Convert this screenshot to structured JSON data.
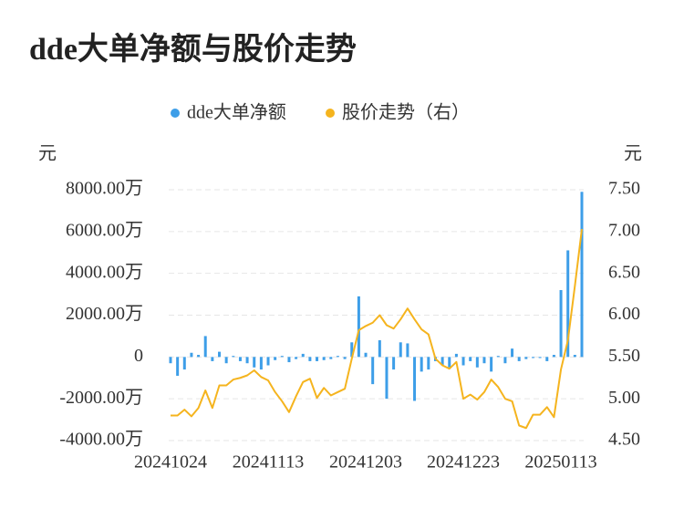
{
  "chart_data": {
    "type": "bar",
    "title": "dde大单净额与股价走势",
    "y_label": "元",
    "y2_label": "元",
    "legend": "top",
    "grid": true,
    "categories": [
      "20241024",
      null,
      null,
      null,
      null,
      null,
      null,
      null,
      null,
      null,
      null,
      null,
      null,
      null,
      "20241113",
      null,
      null,
      null,
      null,
      null,
      null,
      null,
      null,
      null,
      null,
      null,
      null,
      null,
      "20241203",
      null,
      null,
      null,
      null,
      null,
      null,
      null,
      null,
      null,
      null,
      null,
      null,
      null,
      "20241223",
      null,
      null,
      null,
      null,
      null,
      null,
      null,
      null,
      null,
      null,
      null,
      null,
      null,
      "20250113",
      null,
      null,
      null
    ],
    "series": [
      {
        "name": "dde大单净额",
        "color": "#3d9ee8",
        "type": "bar",
        "values": [
          -300,
          -900,
          -600,
          200,
          100,
          1000,
          -200,
          250,
          -300,
          50,
          -200,
          -300,
          -500,
          -600,
          -400,
          -150,
          50,
          -250,
          -100,
          150,
          -200,
          -200,
          -150,
          -100,
          50,
          -100,
          700,
          2900,
          200,
          -1300,
          800,
          -2000,
          -600,
          700,
          650,
          -2100,
          -700,
          -600,
          -200,
          -400,
          -500,
          150,
          -400,
          -200,
          -500,
          -300,
          -700,
          50,
          -300,
          400,
          -200,
          -100,
          -50,
          -50,
          -200,
          100,
          3200,
          5100,
          100,
          7900
        ]
      },
      {
        "name": "股价走势（右）",
        "color": "#f5b41e",
        "type": "line",
        "axis": "y2",
        "values": [
          4.8,
          4.8,
          4.87,
          4.79,
          4.89,
          5.1,
          4.89,
          5.16,
          5.16,
          5.23,
          5.25,
          5.28,
          5.34,
          5.26,
          5.22,
          5.08,
          4.97,
          4.84,
          5.03,
          5.2,
          5.24,
          5.01,
          5.13,
          5.04,
          5.08,
          5.12,
          5.48,
          5.82,
          5.87,
          5.91,
          6.0,
          5.88,
          5.84,
          5.95,
          6.08,
          5.95,
          5.83,
          5.77,
          5.48,
          5.4,
          5.36,
          5.44,
          5.0,
          5.05,
          4.99,
          5.08,
          5.23,
          5.14,
          5.0,
          4.97,
          4.68,
          4.65,
          4.81,
          4.81,
          4.9,
          4.78,
          5.35,
          5.7,
          6.35,
          7.03
        ]
      }
    ],
    "ylim": [
      -4000,
      8000
    ],
    "yticks": [
      {
        "value": -4000,
        "label": "-4000.00万"
      },
      {
        "value": -2000,
        "label": "-2000.00万"
      },
      0,
      {
        "value": 2000,
        "label": "2000.00万"
      },
      {
        "value": 4000,
        "label": "4000.00万"
      },
      {
        "value": 6000,
        "label": "6000.00万"
      },
      {
        "value": 8000,
        "label": "8000.00万"
      }
    ],
    "y2lim": [
      4.5,
      7.5
    ],
    "y2ticks": [
      {
        "value": 4.5,
        "label": "4.50"
      },
      {
        "value": 5,
        "label": "5.00"
      },
      {
        "value": 5.5,
        "label": "5.50"
      },
      {
        "value": 6,
        "label": "6.00"
      },
      {
        "value": 6.5,
        "label": "6.50"
      },
      {
        "value": 7,
        "label": "7.00"
      },
      {
        "value": 7.5,
        "label": "7.50"
      }
    ]
  }
}
